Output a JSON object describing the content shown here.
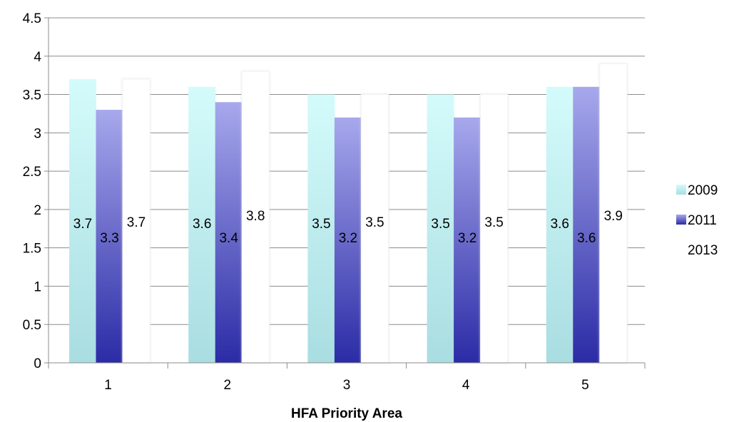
{
  "chart_data": {
    "type": "bar",
    "title": "",
    "xlabel": "HFA Priority Area",
    "ylabel": "",
    "categories": [
      "1",
      "2",
      "3",
      "4",
      "5"
    ],
    "series": [
      {
        "name": "2009",
        "values": [
          3.7,
          3.6,
          3.5,
          3.5,
          3.6
        ],
        "color_top": "#d4fbfb",
        "color_bottom": "#a9dde1"
      },
      {
        "name": "2011",
        "values": [
          3.3,
          3.4,
          3.2,
          3.2,
          3.6
        ],
        "color_top": "#a7a8ec",
        "color_bottom": "#2b2ba6"
      },
      {
        "name": "2013",
        "values": [
          3.7,
          3.8,
          3.5,
          3.5,
          3.9
        ],
        "color_top": "#ffffff",
        "color_bottom": "#ffffff"
      }
    ],
    "data_labels": [
      [
        "3.7",
        "3.6",
        "3.5",
        "3.5",
        "3.6"
      ],
      [
        "3.3",
        "3.4",
        "3.2",
        "3.2",
        "3.6"
      ],
      [
        "3.7",
        "3.8",
        "3.5",
        "3.5",
        "3.9"
      ]
    ],
    "yticks": [
      "0",
      "0.5",
      "1",
      "1.5",
      "2",
      "2.5",
      "3",
      "3.5",
      "4",
      "4.5"
    ],
    "ylim": [
      0,
      4.5
    ],
    "grid": true,
    "legend_position": "right"
  }
}
